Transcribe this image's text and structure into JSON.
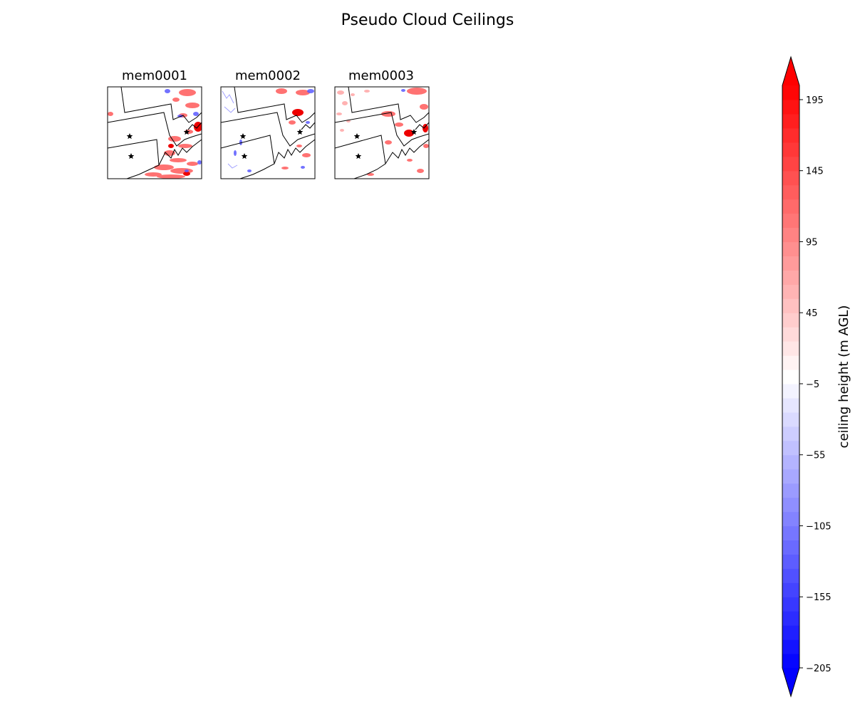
{
  "title": "Pseudo Cloud Ceilings",
  "panels": [
    {
      "name": "mem0001"
    },
    {
      "name": "mem0002"
    },
    {
      "name": "mem0003"
    }
  ],
  "colorbar": {
    "label": "ceiling height (m AGL)",
    "vmin": -205,
    "vmax": 205,
    "step": 10,
    "extend": "both",
    "cmap": "bwr",
    "ticks": [
      -205,
      -155,
      -105,
      -55,
      -5,
      45,
      95,
      145,
      195
    ],
    "tick_labels": [
      "−205",
      "−155",
      "−105",
      "−55",
      "−5",
      "45",
      "95",
      "145",
      "195"
    ]
  },
  "chart_data": {
    "type": "heatmap",
    "title": "Pseudo Cloud Ceilings",
    "subplots": [
      "mem0001",
      "mem0002",
      "mem0003"
    ],
    "colorbar_label": "ceiling height (m AGL)",
    "value_range": [
      -205,
      205
    ],
    "colormap": "bwr",
    "colors": {
      "low": "#0000ff",
      "mid": "#ffffff",
      "high": "#ff0000"
    }
  }
}
